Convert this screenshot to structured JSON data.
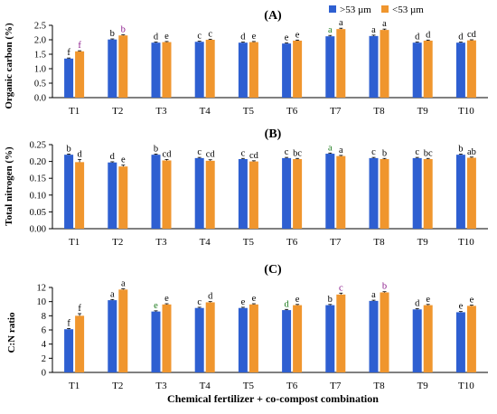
{
  "legend": {
    "position": "top-right",
    "items": [
      {
        "name": ">53 µm",
        "color": "#2E5FD1"
      },
      {
        "name": "<53 µm",
        "color": "#F0962E"
      }
    ]
  },
  "xlabel": "Chemical fertilizer + co-compost combination",
  "chart_data": [
    {
      "type": "bar",
      "title": "(A)",
      "ylabel": "Organic carbon (%)",
      "ylim": [
        0,
        2.5
      ],
      "yticks": [
        "0.0",
        "0.5",
        "1.0",
        "1.5",
        "2.0",
        "2.5"
      ],
      "categories": [
        "T1",
        "T2",
        "T3",
        "T4",
        "T5",
        "T6",
        "T7",
        "T8",
        "T9",
        "T10"
      ],
      "series": [
        {
          "name": ">53 µm",
          "color": "#2E5FD1",
          "values": [
            1.35,
            2.01,
            1.9,
            1.93,
            1.9,
            1.87,
            2.12,
            2.13,
            1.9,
            1.9
          ],
          "errors": [
            0.02,
            0.02,
            0.02,
            0.02,
            0.02,
            0.02,
            0.03,
            0.03,
            0.02,
            0.02
          ],
          "letters": [
            "f",
            "b",
            "d",
            "c",
            "d",
            "e",
            "a",
            "a",
            "d",
            "d"
          ],
          "letter_colors": [
            "#000",
            "#000",
            "#000",
            "#000",
            "#000",
            "#000",
            "#1a7a1a",
            "#000",
            "#000",
            "#000"
          ]
        },
        {
          "name": "<53 µm",
          "color": "#F0962E",
          "values": [
            1.6,
            2.15,
            1.92,
            2.0,
            1.92,
            1.97,
            2.37,
            2.34,
            1.97,
            1.98
          ],
          "errors": [
            0.02,
            0.02,
            0.02,
            0.02,
            0.02,
            0.02,
            0.03,
            0.03,
            0.02,
            0.02
          ],
          "letters": [
            "f",
            "b",
            "e",
            "c",
            "e",
            "e",
            "a",
            "a",
            "d",
            "cd"
          ],
          "letter_colors": [
            "#8b1a8b",
            "#8b1a8b",
            "#000",
            "#000",
            "#000",
            "#000",
            "#000",
            "#000",
            "#000",
            "#000"
          ]
        }
      ]
    },
    {
      "type": "bar",
      "title": "(B)",
      "ylabel": "Total nitrogen (%)",
      "ylim": [
        0,
        0.25
      ],
      "yticks": [
        "0.00",
        "0.05",
        "0.10",
        "0.15",
        "0.20",
        "0.25"
      ],
      "categories": [
        "T1",
        "T2",
        "T3",
        "T4",
        "T5",
        "T6",
        "T7",
        "T8",
        "T9",
        "T10"
      ],
      "series": [
        {
          "name": ">53 µm",
          "color": "#2E5FD1",
          "values": [
            0.22,
            0.197,
            0.22,
            0.21,
            0.207,
            0.21,
            0.223,
            0.21,
            0.21,
            0.22
          ],
          "errors": [
            0.002,
            0.002,
            0.002,
            0.002,
            0.002,
            0.002,
            0.002,
            0.002,
            0.002,
            0.002
          ],
          "letters": [
            "b",
            "d",
            "b",
            "c",
            "c",
            "c",
            "a",
            "c",
            "c",
            "b"
          ],
          "letter_colors": [
            "#000",
            "#000",
            "#000",
            "#000",
            "#000",
            "#000",
            "#1a7a1a",
            "#000",
            "#000",
            "#000"
          ]
        },
        {
          "name": "<53 µm",
          "color": "#F0962E",
          "values": [
            0.198,
            0.185,
            0.203,
            0.202,
            0.2,
            0.207,
            0.216,
            0.207,
            0.207,
            0.211
          ],
          "errors": [
            0.008,
            0.004,
            0.003,
            0.003,
            0.002,
            0.002,
            0.002,
            0.002,
            0.002,
            0.002
          ],
          "letters": [
            "d",
            "e",
            "cd",
            "cd",
            "cd",
            "bc",
            "a",
            "b",
            "bc",
            "ab"
          ],
          "letter_colors": [
            "#000",
            "#000",
            "#000",
            "#000",
            "#000",
            "#000",
            "#000",
            "#000",
            "#000",
            "#000"
          ]
        }
      ]
    },
    {
      "type": "bar",
      "title": "(C)",
      "ylabel": "C:N ratio",
      "ylim": [
        0,
        12
      ],
      "yticks": [
        "0",
        "2",
        "4",
        "6",
        "8",
        "10",
        "12"
      ],
      "categories": [
        "T1",
        "T2",
        "T3",
        "T4",
        "T5",
        "T6",
        "T7",
        "T8",
        "T9",
        "T10"
      ],
      "series": [
        {
          "name": ">53 µm",
          "color": "#2E5FD1",
          "values": [
            6.1,
            10.2,
            8.6,
            9.1,
            9.1,
            8.8,
            9.5,
            10.1,
            8.9,
            8.5
          ],
          "errors": [
            0.1,
            0.1,
            0.1,
            0.1,
            0.1,
            0.1,
            0.1,
            0.1,
            0.1,
            0.1
          ],
          "letters": [
            "f",
            "a",
            "e",
            "c",
            "e",
            "d",
            "b",
            "a",
            "d",
            "e"
          ],
          "letter_colors": [
            "#000",
            "#000",
            "#1a7a1a",
            "#000",
            "#000",
            "#1a7a1a",
            "#000",
            "#000",
            "#000",
            "#000"
          ]
        },
        {
          "name": "<53 µm",
          "color": "#F0962E",
          "values": [
            8.0,
            11.7,
            9.6,
            9.9,
            9.6,
            9.5,
            11.0,
            11.3,
            9.5,
            9.4
          ],
          "errors": [
            0.3,
            0.1,
            0.1,
            0.1,
            0.1,
            0.1,
            0.2,
            0.1,
            0.1,
            0.1
          ],
          "letters": [
            "f",
            "a",
            "e",
            "d",
            "e",
            "e",
            "c",
            "b",
            "e",
            "e"
          ],
          "letter_colors": [
            "#000",
            "#000",
            "#000",
            "#000",
            "#000",
            "#000",
            "#8b1a8b",
            "#8b1a8b",
            "#000",
            "#000"
          ]
        }
      ]
    }
  ]
}
